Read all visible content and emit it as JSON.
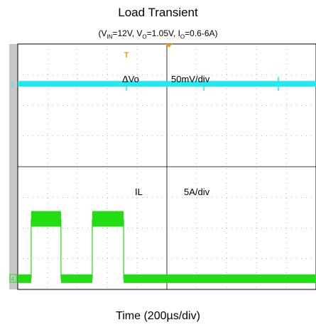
{
  "chart_data": {
    "type": "line",
    "title": "Load Transient",
    "subtitle": {
      "vin": "12V",
      "vo": "1.05V",
      "io": "0.6-6A"
    },
    "xlabel": "Time (200µs/div)",
    "grid": true,
    "x_divisions": 10,
    "y_divisions": 8,
    "channels": [
      {
        "marker": "2",
        "color": "#22e8f0",
        "label": "ΔVo",
        "scale": "50mV/div",
        "level_div": 6.7
      },
      {
        "marker": "4",
        "color": "#22dd11",
        "label": "IL",
        "scale": "5A/div",
        "low_level_div": 0.35,
        "high_level_div": 2.3,
        "high_intervals_div": [
          [
            0.45,
            1.45
          ],
          [
            2.5,
            3.55
          ]
        ]
      }
    ],
    "trigger_marker": "T"
  }
}
